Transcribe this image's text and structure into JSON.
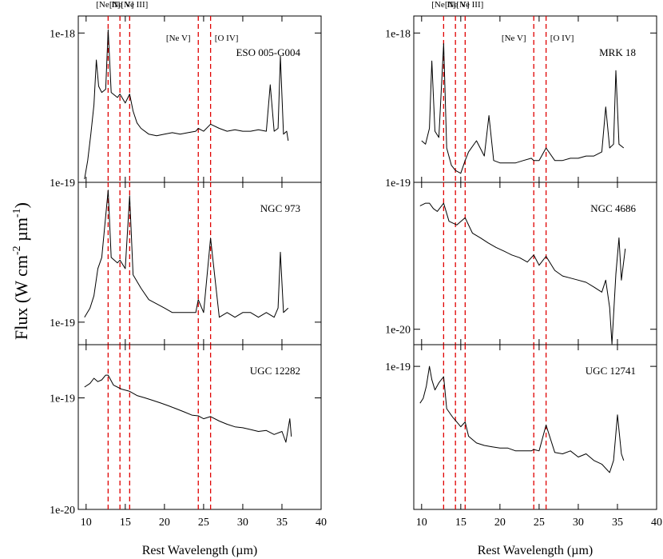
{
  "figure": {
    "ylabel": "Flux (W cm",
    "ylabel_sup1": "-2",
    "ylabel_mid": " µm",
    "ylabel_sup2": "-1",
    "ylabel_end": ")",
    "xlabel": "Rest Wavelength (µm)"
  },
  "lines": {
    "labels": [
      "[Ne II]",
      "[Ne V]",
      "[Ne III]",
      "[Ne V]",
      "[O IV]"
    ],
    "wavelengths": [
      12.81,
      14.32,
      15.56,
      24.32,
      25.89
    ],
    "color": "#e00000"
  },
  "chart_data": [
    {
      "type": "line",
      "object": "ESO 005-G004",
      "column": 0,
      "row": 0,
      "xlim": [
        9,
        40
      ],
      "xticks": [
        10,
        15,
        20,
        25,
        30,
        35,
        40
      ],
      "ylog": true,
      "ylim": [
        1e-19,
        1.3e-18
      ],
      "ytick_labels": [
        {
          "value": 1e-18,
          "label": "1e-18"
        },
        {
          "value": 1e-19,
          "label": "1e-19"
        }
      ],
      "x": [
        9.8,
        10.2,
        10.6,
        11.0,
        11.3,
        11.6,
        12.0,
        12.5,
        12.81,
        13.2,
        14.0,
        14.32,
        15.0,
        15.56,
        16.0,
        16.5,
        17.0,
        18.0,
        19.0,
        20.0,
        21.0,
        22.0,
        23.0,
        24.0,
        24.32,
        25.0,
        25.89,
        27.0,
        28.0,
        29.0,
        30.0,
        31.0,
        32.0,
        33.0,
        33.5,
        34.0,
        34.5,
        34.8,
        35.2,
        35.6,
        35.8
      ],
      "y": [
        1.05e-19,
        1.4e-19,
        2.1e-19,
        3.3e-19,
        6.6e-19,
        4.4e-19,
        4e-19,
        4.2e-19,
        1.05e-18,
        4e-19,
        3.7e-19,
        3.9e-19,
        3.4e-19,
        3.9e-19,
        3e-19,
        2.5e-19,
        2.3e-19,
        2.1e-19,
        2.05e-19,
        2.1e-19,
        2.15e-19,
        2.1e-19,
        2.15e-19,
        2.2e-19,
        2.3e-19,
        2.2e-19,
        2.45e-19,
        2.3e-19,
        2.2e-19,
        2.25e-19,
        2.2e-19,
        2.2e-19,
        2.25e-19,
        2.2e-19,
        4.5e-19,
        2.2e-19,
        2.3e-19,
        7e-19,
        2.1e-19,
        2.2e-19,
        1.9e-19
      ]
    },
    {
      "type": "line",
      "object": "NGC 973",
      "column": 0,
      "row": 1,
      "xlim": [
        9,
        40
      ],
      "xticks": [
        10,
        15,
        20,
        25,
        30,
        35,
        40
      ],
      "ylog": true,
      "ylim": [
        8e-20,
        4e-19
      ],
      "ytick_labels": [
        {
          "value": 1e-19,
          "label": "1e-19"
        }
      ],
      "x": [
        9.8,
        10.5,
        11.0,
        11.5,
        12.0,
        12.81,
        13.2,
        14.0,
        14.32,
        15.0,
        15.56,
        16.0,
        17.0,
        18.0,
        19.0,
        20.0,
        21.0,
        22.0,
        23.0,
        24.0,
        24.32,
        25.0,
        25.89,
        27.0,
        28.0,
        29.0,
        30.0,
        31.0,
        32.0,
        33.0,
        34.0,
        34.5,
        34.8,
        35.2,
        35.8
      ],
      "y": [
        1.05e-19,
        1.15e-19,
        1.3e-19,
        1.7e-19,
        1.9e-19,
        3.7e-19,
        1.9e-19,
        1.8e-19,
        1.85e-19,
        1.7e-19,
        3.5e-19,
        1.6e-19,
        1.4e-19,
        1.25e-19,
        1.2e-19,
        1.15e-19,
        1.1e-19,
        1.1e-19,
        1.1e-19,
        1.1e-19,
        1.25e-19,
        1.1e-19,
        2.3e-19,
        1.05e-19,
        1.1e-19,
        1.05e-19,
        1.1e-19,
        1.1e-19,
        1.05e-19,
        1.1e-19,
        1.05e-19,
        1.15e-19,
        2e-19,
        1.1e-19,
        1.15e-19
      ]
    },
    {
      "type": "line",
      "object": "UGC 12282",
      "column": 0,
      "row": 2,
      "xlim": [
        9,
        40
      ],
      "xticks": [
        10,
        15,
        20,
        25,
        30,
        35,
        40
      ],
      "ylog": true,
      "ylim": [
        1e-20,
        3e-19
      ],
      "ytick_labels": [
        {
          "value": 1e-19,
          "label": "1e-19"
        },
        {
          "value": 1e-20,
          "label": "1e-20"
        }
      ],
      "x": [
        9.8,
        10.5,
        11.0,
        11.5,
        12.0,
        12.5,
        12.81,
        13.5,
        14.5,
        15.5,
        16.5,
        17.5,
        18.5,
        19.5,
        20.5,
        21.5,
        22.5,
        23.5,
        24.32,
        25.0,
        25.89,
        27.0,
        28.0,
        29.0,
        30.0,
        31.0,
        32.0,
        33.0,
        34.0,
        35.0,
        35.5,
        36.0,
        36.2
      ],
      "y": [
        1.25e-19,
        1.35e-19,
        1.5e-19,
        1.4e-19,
        1.45e-19,
        1.6e-19,
        1.6e-19,
        1.3e-19,
        1.2e-19,
        1.15e-19,
        1.05e-19,
        1e-19,
        9.5e-20,
        9e-20,
        8.5e-20,
        8e-20,
        7.5e-20,
        7e-20,
        6.9e-20,
        6.5e-20,
        6.8e-20,
        6.2e-20,
        5.8e-20,
        5.5e-20,
        5.4e-20,
        5.2e-20,
        5e-20,
        5.1e-20,
        4.7e-20,
        5e-20,
        4e-20,
        6.5e-20,
        4.5e-20
      ]
    },
    {
      "type": "line",
      "object": "MRK 18",
      "column": 1,
      "row": 0,
      "xlim": [
        9,
        40
      ],
      "xticks": [
        10,
        15,
        20,
        25,
        30,
        35,
        40
      ],
      "ylog": true,
      "ylim": [
        1e-19,
        1.3e-18
      ],
      "ytick_labels": [
        {
          "value": 1e-18,
          "label": "1e-18"
        },
        {
          "value": 1e-19,
          "label": "1e-19"
        }
      ],
      "x": [
        10.0,
        10.5,
        11.0,
        11.3,
        11.7,
        12.2,
        12.81,
        13.2,
        13.8,
        14.32,
        15.0,
        15.56,
        16.0,
        17.0,
        18.0,
        18.6,
        19.2,
        20.0,
        21.0,
        22.0,
        23.0,
        24.0,
        24.32,
        25.0,
        25.89,
        27.0,
        28.0,
        29.0,
        30.0,
        31.0,
        32.0,
        33.0,
        33.5,
        34.0,
        34.5,
        34.8,
        35.2,
        35.8
      ],
      "y": [
        1.9e-19,
        1.8e-19,
        2.3e-19,
        6.5e-19,
        2.2e-19,
        2e-19,
        8.5e-19,
        1.7e-19,
        1.3e-19,
        1.2e-19,
        1.15e-19,
        1.4e-19,
        1.6e-19,
        1.9e-19,
        1.5e-19,
        2.8e-19,
        1.4e-19,
        1.35e-19,
        1.35e-19,
        1.35e-19,
        1.4e-19,
        1.45e-19,
        1.4e-19,
        1.4e-19,
        1.7e-19,
        1.4e-19,
        1.4e-19,
        1.45e-19,
        1.45e-19,
        1.5e-19,
        1.5e-19,
        1.6e-19,
        3.2e-19,
        1.7e-19,
        1.8e-19,
        5.6e-19,
        1.8e-19,
        1.7e-19
      ]
    },
    {
      "type": "line",
      "object": "NGC 4686",
      "column": 1,
      "row": 1,
      "xlim": [
        9,
        40
      ],
      "xticks": [
        10,
        15,
        20,
        25,
        30,
        35,
        40
      ],
      "ylog": true,
      "ylim": [
        7.5e-21,
        1.55e-19
      ],
      "ytick_labels": [
        {
          "value": 1e-20,
          "label": "1e-20"
        }
      ],
      "x": [
        9.8,
        10.5,
        11.0,
        11.5,
        12.0,
        12.81,
        13.5,
        14.5,
        15.56,
        16.5,
        17.5,
        18.5,
        19.5,
        20.5,
        21.5,
        22.5,
        23.5,
        24.32,
        25.0,
        25.89,
        27.0,
        28.0,
        29.0,
        30.0,
        31.0,
        32.0,
        33.0,
        33.5,
        34.0,
        34.3,
        34.8,
        35.2,
        35.5,
        36.0
      ],
      "y": [
        1e-19,
        1.05e-19,
        1.05e-19,
        9.5e-20,
        9e-20,
        1.05e-19,
        7.5e-20,
        7e-20,
        8e-20,
        6e-20,
        5.5e-20,
        5e-20,
        4.6e-20,
        4.3e-20,
        4e-20,
        3.8e-20,
        3.5e-20,
        4e-20,
        3.3e-20,
        3.9e-20,
        3e-20,
        2.7e-20,
        2.6e-20,
        2.5e-20,
        2.4e-20,
        2.2e-20,
        2e-20,
        2.5e-20,
        1.5e-20,
        7.6e-21,
        2.8e-20,
        5.5e-20,
        2.5e-20,
        4.5e-20
      ]
    },
    {
      "type": "line",
      "object": "UGC 12741",
      "column": 1,
      "row": 2,
      "xlim": [
        9,
        40
      ],
      "xticks": [
        10,
        15,
        20,
        25,
        30,
        35,
        40
      ],
      "ylog": true,
      "ylim": [
        4.5e-21,
        1.6e-19
      ],
      "ytick_labels": [
        {
          "value": 1e-19,
          "label": "1e-19"
        }
      ],
      "x": [
        9.8,
        10.2,
        10.6,
        11.0,
        11.3,
        11.7,
        12.2,
        12.81,
        13.2,
        14.0,
        14.32,
        15.0,
        15.56,
        16.0,
        17.0,
        18.0,
        19.0,
        20.0,
        21.0,
        22.0,
        23.0,
        24.0,
        24.32,
        25.0,
        25.89,
        27.0,
        28.0,
        29.0,
        30.0,
        31.0,
        32.0,
        33.0,
        34.0,
        34.5,
        35.0,
        35.5,
        35.8
      ],
      "y": [
        4.5e-20,
        5e-20,
        6.5e-20,
        1e-19,
        7.5e-20,
        6e-20,
        7e-20,
        8e-20,
        4e-20,
        3.3e-20,
        3.1e-20,
        2.7e-20,
        3e-20,
        2.2e-20,
        1.9e-20,
        1.8e-20,
        1.75e-20,
        1.7e-20,
        1.7e-20,
        1.6e-20,
        1.6e-20,
        1.6e-20,
        1.65e-20,
        1.6e-20,
        2.8e-20,
        1.55e-20,
        1.5e-20,
        1.6e-20,
        1.4e-20,
        1.5e-20,
        1.3e-20,
        1.2e-20,
        1e-20,
        1.3e-20,
        3.5e-20,
        1.5e-20,
        1.3e-20
      ]
    }
  ]
}
